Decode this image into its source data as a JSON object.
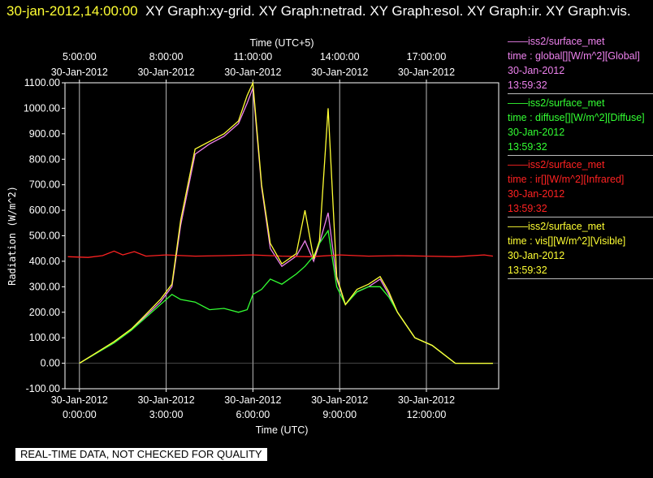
{
  "header": {
    "timestamp": "30-jan-2012,14:00:00",
    "graphs_text": "XY Graph:xy-grid.  XY Graph:netrad.  XY Graph:esol.  XY Graph:ir.  XY Graph:vis."
  },
  "legend": [
    {
      "station": "iss2/surface_met",
      "variable": "time : global[][W/m^2][Global]",
      "date": "30-Jan-2012",
      "time": "13:59:32",
      "color": "#ee82ee"
    },
    {
      "station": "iss2/surface_met",
      "variable": "time : diffuse[][W/m^2][Diffuse]",
      "date": "30-Jan-2012",
      "time": "13:59:32",
      "color": "#33ff33"
    },
    {
      "station": "iss2/surface_met",
      "variable": "time : ir[][W/m^2][Infrared]",
      "date": "30-Jan-2012",
      "time": "13:59:32",
      "color": "#ff2222"
    },
    {
      "station": "iss2/surface_met",
      "variable": "time : vis[][W/m^2][Visible]",
      "date": "30-Jan-2012",
      "time": "13:59:32",
      "color": "#ffff33"
    }
  ],
  "disclaimer": "REAL-TIME DATA, NOT CHECKED FOR QUALITY",
  "chart_data": {
    "type": "line",
    "ylabel": "Radiation (W/m^2)",
    "xlabel_bottom": "Time (UTC)",
    "xlabel_top": "Time (UTC+5)",
    "ylim": [
      -100,
      1100
    ],
    "xlim_hours": [
      -0.5,
      14.5
    ],
    "yticks": [
      "-100.00",
      "0.00",
      "100.00",
      "200.00",
      "300.00",
      "400.00",
      "500.00",
      "600.00",
      "700.00",
      "800.00",
      "900.00",
      "1000.00",
      "1100.00"
    ],
    "bottom_ticks": [
      {
        "hour": 0,
        "date": "30-Jan-2012",
        "time": "0:00:00"
      },
      {
        "hour": 3,
        "date": "30-Jan-2012",
        "time": "3:00:00"
      },
      {
        "hour": 6,
        "date": "30-Jan-2012",
        "time": "6:00:00"
      },
      {
        "hour": 9,
        "date": "30-Jan-2012",
        "time": "9:00:00"
      },
      {
        "hour": 12,
        "date": "30-Jan-2012",
        "time": "12:00:00"
      }
    ],
    "top_ticks": [
      {
        "hour": 0,
        "time": "5:00:00",
        "date": "30-Jan-2012"
      },
      {
        "hour": 3,
        "time": "8:00:00",
        "date": "30-Jan-2012"
      },
      {
        "hour": 6,
        "time": "11:00:00",
        "date": "30-Jan-2012"
      },
      {
        "hour": 9,
        "time": "14:00:00",
        "date": "30-Jan-2012"
      },
      {
        "hour": 12,
        "time": "17:00:00",
        "date": "30-Jan-2012"
      }
    ],
    "grid": true,
    "series": [
      {
        "name": "global",
        "color": "#ee82ee",
        "x": [
          0,
          1.2,
          1.8,
          2.2,
          2.8,
          3.2,
          3.5,
          4.0,
          4.5,
          5.0,
          5.5,
          5.8,
          6.0,
          6.3,
          6.6,
          7.0,
          7.5,
          7.8,
          8.1,
          8.3,
          8.6,
          8.9,
          9.2,
          9.6,
          10.0,
          10.4,
          10.7,
          11.0,
          11.6,
          12.2,
          13.0,
          14.3
        ],
        "y": [
          0,
          80,
          130,
          175,
          240,
          300,
          540,
          820,
          860,
          890,
          940,
          1020,
          1080,
          690,
          450,
          380,
          420,
          480,
          400,
          470,
          590,
          330,
          230,
          280,
          300,
          330,
          270,
          200,
          100,
          70,
          0,
          0
        ]
      },
      {
        "name": "diffuse",
        "color": "#33ff33",
        "x": [
          0,
          1.2,
          1.8,
          2.2,
          2.8,
          3.2,
          3.5,
          4.0,
          4.5,
          5.0,
          5.5,
          5.8,
          6.0,
          6.3,
          6.6,
          7.0,
          7.5,
          7.8,
          8.1,
          8.3,
          8.6,
          8.9,
          9.2,
          9.6,
          10.0,
          10.4,
          10.7,
          11.0,
          11.6,
          12.2,
          13.0,
          14.3
        ],
        "y": [
          0,
          80,
          130,
          170,
          230,
          270,
          250,
          240,
          210,
          215,
          200,
          210,
          270,
          290,
          330,
          310,
          350,
          380,
          420,
          470,
          520,
          300,
          230,
          280,
          300,
          300,
          260,
          200,
          100,
          70,
          0,
          0
        ]
      },
      {
        "name": "ir",
        "color": "#ff2222",
        "x": [
          -0.4,
          0.3,
          0.8,
          1.2,
          1.5,
          1.9,
          2.3,
          3.0,
          4.0,
          5.0,
          6.0,
          7.0,
          8.0,
          9.0,
          10.0,
          11.0,
          12.0,
          13.0,
          14.0,
          14.3
        ],
        "y": [
          418,
          415,
          422,
          440,
          425,
          438,
          420,
          425,
          420,
          422,
          425,
          420,
          418,
          425,
          420,
          422,
          420,
          418,
          425,
          420
        ]
      },
      {
        "name": "vis",
        "color": "#ffff33",
        "x": [
          0,
          1.2,
          1.8,
          2.2,
          2.8,
          3.2,
          3.5,
          4.0,
          4.5,
          5.0,
          5.5,
          5.8,
          6.0,
          6.3,
          6.6,
          7.0,
          7.5,
          7.8,
          8.1,
          8.3,
          8.6,
          8.9,
          9.2,
          9.6,
          10.0,
          10.4,
          10.7,
          11.0,
          11.6,
          12.2,
          13.0,
          14.3
        ],
        "y": [
          0,
          85,
          135,
          180,
          250,
          310,
          560,
          840,
          870,
          900,
          950,
          1050,
          1100,
          700,
          470,
          390,
          430,
          600,
          410,
          480,
          1000,
          340,
          230,
          290,
          310,
          340,
          280,
          200,
          100,
          70,
          0,
          0
        ]
      }
    ]
  }
}
